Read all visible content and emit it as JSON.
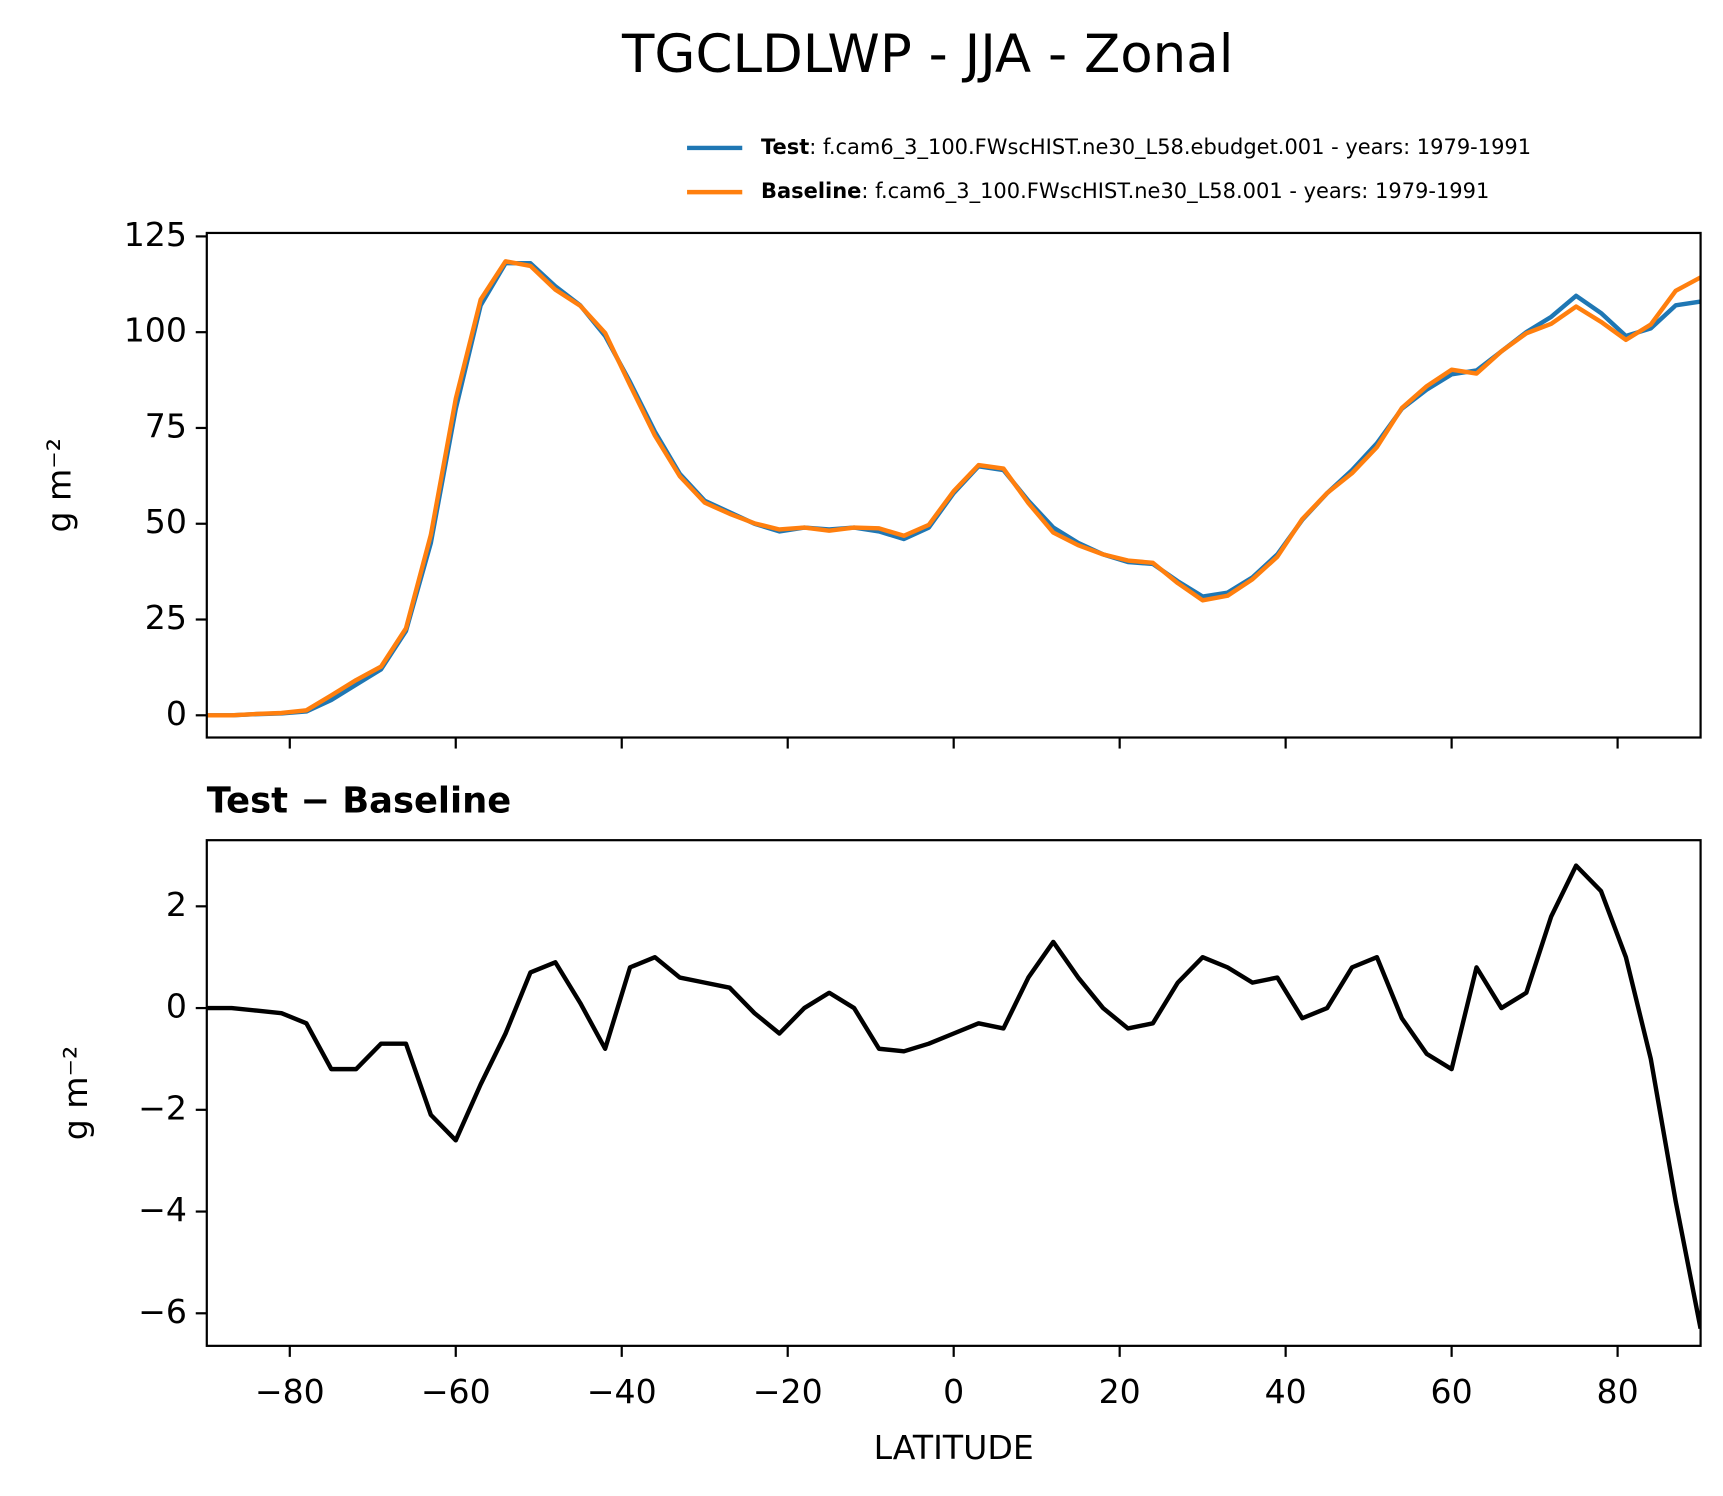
{
  "title": "TGCLDLWP - JJA - Zonal",
  "chart_data": [
    {
      "type": "line",
      "ylabel": "g m⁻²",
      "x": [
        -90,
        -87,
        -84,
        -81,
        -78,
        -75,
        -72,
        -69,
        -66,
        -63,
        -60,
        -57,
        -54,
        -51,
        -48,
        -45,
        -42,
        -39,
        -36,
        -33,
        -30,
        -27,
        -24,
        -21,
        -18,
        -15,
        -12,
        -9,
        -6,
        -3,
        0,
        3,
        6,
        9,
        12,
        15,
        18,
        21,
        24,
        27,
        30,
        33,
        36,
        39,
        42,
        45,
        48,
        51,
        54,
        57,
        60,
        63,
        66,
        69,
        72,
        75,
        78,
        81,
        84,
        87,
        90
      ],
      "series": [
        {
          "name": "Test",
          "description": ": f.cam6_3_100.FWscHIST.ne30_L58.ebudget.001 - years: 1979-1991",
          "color": "#1f77b4",
          "values": [
            0,
            0,
            0.3,
            0.5,
            1,
            4,
            8,
            12,
            22,
            45,
            80,
            107,
            118,
            118,
            112,
            107,
            99,
            87,
            74,
            63,
            56,
            53,
            50,
            48,
            49,
            48.5,
            49,
            48,
            46,
            49,
            58,
            65,
            64,
            56,
            49,
            45,
            42,
            40,
            39.5,
            35,
            31,
            32,
            36,
            42,
            51,
            58,
            64,
            71,
            80,
            85,
            89,
            90,
            95,
            100,
            104,
            109.5,
            105,
            99,
            101,
            107,
            108
          ]
        },
        {
          "name": "Baseline",
          "description": ": f.cam6_3_100.FWscHIST.ne30_L58.001 - years: 1979-1991",
          "color": "#ff7f0e",
          "values": [
            0,
            0,
            0.35,
            0.6,
            1.3,
            5.2,
            9.2,
            12.7,
            22.7,
            47.1,
            82.6,
            108.5,
            118.5,
            117.3,
            111.1,
            106.9,
            99.8,
            86.2,
            73,
            62.4,
            55.5,
            52.6,
            50.1,
            48.5,
            49,
            48.2,
            49,
            48.8,
            46.85,
            49.7,
            58.5,
            65.3,
            64.4,
            55.4,
            47.7,
            44.4,
            42,
            40.4,
            39.8,
            34.5,
            30,
            31.2,
            35.5,
            41.4,
            51.2,
            58,
            63.2,
            70,
            80.2,
            85.9,
            90.2,
            89.2,
            95,
            99.7,
            102.2,
            106.7,
            102.7,
            98,
            102,
            110.8,
            114.3
          ]
        }
      ],
      "xlim": [
        -90,
        90
      ],
      "xticks": [
        -80,
        -60,
        -40,
        -20,
        0,
        20,
        40,
        60,
        80
      ],
      "ylim": [
        -5.8,
        125.9
      ],
      "yticks": [
        0,
        25,
        50,
        75,
        100,
        125
      ]
    },
    {
      "type": "line",
      "title": "Test − Baseline",
      "ylabel": "g m⁻²",
      "xlabel": "LATITUDE",
      "x": [
        -90,
        -87,
        -84,
        -81,
        -78,
        -75,
        -72,
        -69,
        -66,
        -63,
        -60,
        -57,
        -54,
        -51,
        -48,
        -45,
        -42,
        -39,
        -36,
        -33,
        -30,
        -27,
        -24,
        -21,
        -18,
        -15,
        -12,
        -9,
        -6,
        -3,
        0,
        3,
        6,
        9,
        12,
        15,
        18,
        21,
        24,
        27,
        30,
        33,
        36,
        39,
        42,
        45,
        48,
        51,
        54,
        57,
        60,
        63,
        66,
        69,
        72,
        75,
        78,
        81,
        84,
        87,
        90
      ],
      "series": [
        {
          "color": "#000000",
          "values": [
            0,
            0,
            -0.05,
            -0.1,
            -0.3,
            -1.2,
            -1.2,
            -0.7,
            -0.7,
            -2.1,
            -2.6,
            -1.5,
            -0.5,
            0.7,
            0.9,
            0.1,
            -0.8,
            0.8,
            1.0,
            0.6,
            0.5,
            0.4,
            -0.1,
            -0.5,
            0,
            0.3,
            0,
            -0.8,
            -0.85,
            -0.7,
            -0.5,
            -0.3,
            -0.4,
            0.6,
            1.3,
            0.6,
            0,
            -0.4,
            -0.3,
            0.5,
            1.0,
            0.8,
            0.5,
            0.6,
            -0.2,
            0,
            0.8,
            1.0,
            -0.2,
            -0.9,
            -1.2,
            0.8,
            0,
            0.3,
            1.8,
            2.8,
            2.3,
            1.0,
            -1.0,
            -3.8,
            -6.3
          ]
        }
      ],
      "xlim": [
        -90,
        90
      ],
      "xticks": [
        {
          "value": -80,
          "label": "−80"
        },
        {
          "value": -60,
          "label": "−60"
        },
        {
          "value": -40,
          "label": "−40"
        },
        {
          "value": -20,
          "label": "−20"
        },
        0,
        20,
        40,
        60,
        80
      ],
      "ylim": [
        -6.64,
        3.3
      ],
      "yticks": [
        {
          "value": -6,
          "label": "−6"
        },
        {
          "value": -4,
          "label": "−4"
        },
        {
          "value": -2,
          "label": "−2"
        },
        0,
        2
      ]
    }
  ]
}
